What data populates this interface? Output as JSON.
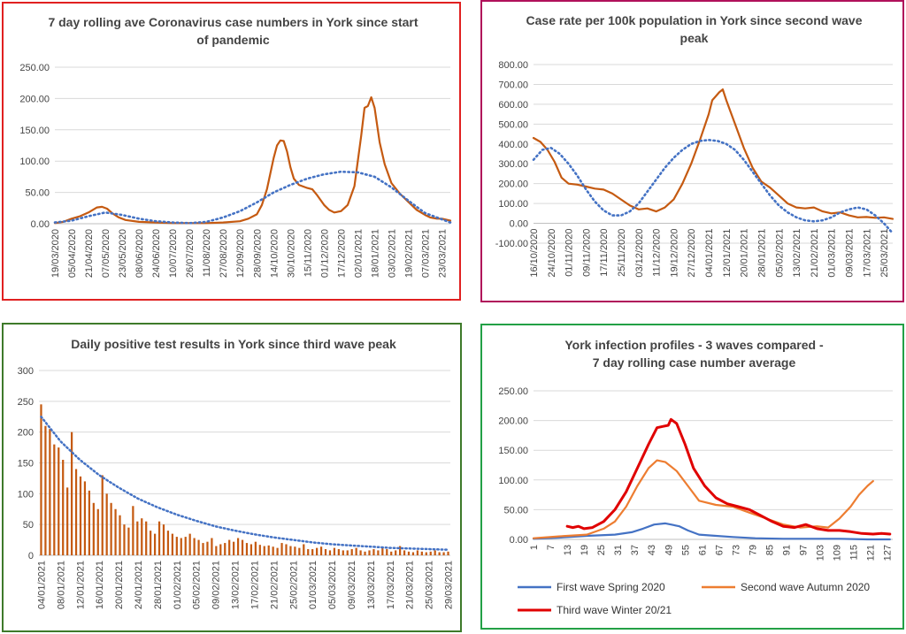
{
  "chart_data": [
    {
      "id": "p1",
      "type": "line",
      "title_lines": [
        "7 day rolling ave Coronavirus case numbers in York since start",
        "of pandemic"
      ],
      "ylim": [
        0,
        250
      ],
      "yticks": [
        "0.00",
        "50.00",
        "100.00",
        "150.00",
        "200.00",
        "250.00"
      ],
      "xticks": [
        "19/03/2020",
        "05/04/2020",
        "21/04/2020",
        "07/05/2020",
        "23/05/2020",
        "08/06/2020",
        "24/06/2020",
        "10/07/2020",
        "26/07/2020",
        "11/08/2020",
        "27/08/2020",
        "12/09/2020",
        "28/09/2020",
        "14/10/2020",
        "30/10/2020",
        "15/11/2020",
        "01/12/2020",
        "17/12/2020",
        "02/01/2021",
        "18/01/2021",
        "03/02/2021",
        "19/02/2021",
        "07/03/2021",
        "23/03/2021"
      ],
      "xrange": [
        0,
        23.5
      ],
      "series": [
        {
          "color": "#c55a11",
          "style": "solid",
          "x": [
            0,
            0.5,
            1,
            1.5,
            2,
            2.5,
            2.8,
            3.1,
            3.4,
            3.8,
            4.2,
            5,
            6,
            7,
            8,
            9,
            10,
            11,
            11.5,
            12,
            12.3,
            12.6,
            12.8,
            13,
            13.2,
            13.4,
            13.6,
            13.8,
            14,
            14.2,
            14.5,
            15,
            15.3,
            15.6,
            16,
            16.3,
            16.6,
            17,
            17.4,
            17.8,
            18,
            18.2,
            18.4,
            18.6,
            18.8,
            19,
            19.3,
            19.6,
            20,
            20.5,
            21,
            21.5,
            22,
            22.3,
            22.7,
            23,
            23.5
          ],
          "y": [
            1,
            3,
            8,
            12,
            18,
            26,
            27,
            24,
            17,
            10,
            6,
            3,
            2,
            1,
            1,
            1,
            2,
            4,
            8,
            15,
            30,
            55,
            80,
            105,
            125,
            133,
            132,
            115,
            90,
            72,
            62,
            57,
            55,
            45,
            30,
            22,
            18,
            20,
            30,
            60,
            100,
            140,
            185,
            188,
            202,
            185,
            130,
            95,
            65,
            48,
            35,
            22,
            14,
            10,
            8,
            8,
            5
          ]
        },
        {
          "color": "#4472c4",
          "style": "dotted",
          "x": [
            0,
            1,
            2,
            3,
            4,
            5,
            6,
            7,
            8,
            9,
            10,
            11,
            12,
            13,
            14,
            15,
            16,
            17,
            18,
            19,
            20,
            21,
            22,
            23.5
          ],
          "y": [
            2,
            5,
            12,
            18,
            14,
            8,
            4,
            2,
            1,
            3,
            10,
            20,
            34,
            50,
            62,
            72,
            79,
            83,
            82,
            75,
            58,
            37,
            17,
            2
          ]
        }
      ]
    },
    {
      "id": "p2",
      "type": "line",
      "title_lines": [
        "Case rate per 100k population in York since second wave",
        "peak"
      ],
      "ylim": [
        -100,
        800
      ],
      "yticks": [
        "-100.00",
        "0.00",
        "100.00",
        "200.00",
        "300.00",
        "400.00",
        "500.00",
        "600.00",
        "700.00",
        "800.00"
      ],
      "xticks": [
        "16/10/2020",
        "24/10/2020",
        "01/11/2020",
        "09/11/2020",
        "17/11/2020",
        "25/11/2020",
        "03/12/2020",
        "11/12/2020",
        "19/12/2020",
        "27/12/2020",
        "04/01/2021",
        "12/01/2021",
        "20/01/2021",
        "28/01/2021",
        "05/02/2021",
        "13/02/2021",
        "21/02/2021",
        "01/03/2021",
        "09/03/2021",
        "17/03/2021",
        "25/03/2021"
      ],
      "xrange": [
        0,
        20.5
      ],
      "series": [
        {
          "color": "#c55a11",
          "style": "solid",
          "x": [
            0,
            0.4,
            0.8,
            1.2,
            1.6,
            2,
            2.5,
            3,
            3.5,
            4,
            4.5,
            5,
            5.5,
            6,
            6.5,
            7,
            7.5,
            8,
            8.5,
            9,
            9.5,
            10,
            10.2,
            10.4,
            10.6,
            10.8,
            11,
            11.5,
            12,
            12.5,
            13,
            13.5,
            14,
            14.5,
            15,
            15.5,
            16,
            16.5,
            17,
            17.5,
            18,
            18.5,
            19,
            19.5,
            20,
            20.5
          ],
          "y": [
            430,
            410,
            370,
            310,
            230,
            200,
            195,
            185,
            175,
            170,
            150,
            120,
            90,
            70,
            75,
            60,
            80,
            120,
            200,
            300,
            420,
            550,
            620,
            640,
            660,
            675,
            620,
            500,
            380,
            280,
            210,
            180,
            140,
            100,
            80,
            75,
            80,
            60,
            50,
            55,
            40,
            30,
            32,
            28,
            30,
            22
          ]
        },
        {
          "color": "#4472c4",
          "style": "dotted",
          "x": [
            0,
            0.5,
            1,
            1.5,
            2,
            2.5,
            3,
            3.5,
            4,
            4.5,
            5,
            5.5,
            6,
            6.5,
            7,
            7.5,
            8,
            8.5,
            9,
            9.5,
            10,
            10.5,
            11,
            11.5,
            12,
            12.5,
            13,
            13.5,
            14,
            14.5,
            15,
            15.5,
            16,
            16.5,
            17,
            17.5,
            18,
            18.5,
            19,
            19.5,
            20,
            20.5
          ],
          "y": [
            320,
            370,
            380,
            350,
            300,
            240,
            170,
            110,
            65,
            40,
            40,
            60,
            100,
            160,
            220,
            280,
            330,
            370,
            400,
            415,
            420,
            415,
            400,
            370,
            320,
            260,
            200,
            140,
            90,
            55,
            30,
            15,
            10,
            15,
            30,
            55,
            70,
            80,
            70,
            40,
            0,
            -50
          ]
        }
      ]
    },
    {
      "id": "p3",
      "type": "bar",
      "title_lines": [
        "Daily positive test results in York since third wave peak"
      ],
      "ylim": [
        0,
        300
      ],
      "yticks": [
        "0",
        "50",
        "100",
        "150",
        "200",
        "250",
        "300"
      ],
      "xticks": [
        "04/01/2021",
        "08/01/2021",
        "12/01/2021",
        "16/01/2021",
        "20/01/2021",
        "24/01/2021",
        "28/01/2021",
        "01/02/2021",
        "05/02/2021",
        "09/02/2021",
        "13/02/2021",
        "17/02/2021",
        "21/02/2021",
        "25/02/2021",
        "01/03/2021",
        "05/03/2021",
        "09/03/2021",
        "13/03/2021",
        "17/03/2021",
        "21/03/2021",
        "25/03/2021",
        "29/03/2021"
      ],
      "values": [
        245,
        210,
        205,
        180,
        175,
        155,
        110,
        200,
        140,
        128,
        120,
        105,
        85,
        75,
        130,
        100,
        85,
        75,
        65,
        50,
        45,
        80,
        55,
        60,
        55,
        40,
        35,
        55,
        50,
        40,
        35,
        30,
        28,
        30,
        35,
        28,
        25,
        20,
        22,
        28,
        15,
        18,
        20,
        25,
        22,
        28,
        25,
        20,
        18,
        22,
        17,
        15,
        16,
        14,
        12,
        20,
        18,
        15,
        14,
        12,
        18,
        10,
        10,
        12,
        14,
        10,
        8,
        12,
        10,
        8,
        8,
        10,
        12,
        8,
        6,
        8,
        10,
        8,
        12,
        10,
        6,
        8,
        15,
        8,
        6,
        5,
        8,
        6,
        5,
        6,
        8,
        5,
        5,
        6
      ],
      "trend": [
        225,
        185,
        155,
        130,
        110,
        92,
        78,
        66,
        56,
        47,
        40,
        34,
        29,
        25,
        21,
        18,
        16,
        14,
        12,
        11,
        10,
        9
      ]
    },
    {
      "id": "p4",
      "type": "line",
      "title_lines": [
        "York infection profiles - 3 waves compared -",
        "7 day rolling case number average"
      ],
      "ylim": [
        0,
        250
      ],
      "yticks": [
        "0.00",
        "50.00",
        "100.00",
        "150.00",
        "200.00",
        "250.00"
      ],
      "xticks": [
        "1",
        "7",
        "13",
        "19",
        "25",
        "31",
        "37",
        "43",
        "49",
        "55",
        "61",
        "67",
        "73",
        "79",
        "85",
        "91",
        "97",
        "103",
        "109",
        "115",
        "121",
        "127"
      ],
      "xrange": [
        1,
        129
      ],
      "legend": [
        {
          "label": "First wave Spring 2020",
          "color": "#4472c4"
        },
        {
          "label": "Second wave Autumn 2020",
          "color": "#ed7d31"
        },
        {
          "label": "Third wave Winter 20/21",
          "color": "#e00000"
        }
      ],
      "series": [
        {
          "name": "First wave Spring 2020",
          "color": "#4472c4",
          "width": 2.2,
          "x": [
            1,
            10,
            20,
            30,
            36,
            40,
            44,
            48,
            50,
            53,
            56,
            60,
            66,
            72,
            80,
            90,
            100,
            110,
            120,
            128
          ],
          "y": [
            1,
            3,
            6,
            8,
            12,
            18,
            25,
            27,
            25,
            22,
            15,
            8,
            6,
            4,
            2,
            1,
            1,
            1,
            0,
            0
          ]
        },
        {
          "name": "Second wave Autumn 2020",
          "color": "#ed7d31",
          "width": 2.2,
          "x": [
            1,
            10,
            20,
            26,
            30,
            34,
            38,
            42,
            45,
            48,
            52,
            56,
            60,
            66,
            72,
            78,
            84,
            90,
            96,
            102,
            106,
            110,
            114,
            117,
            120,
            122
          ],
          "y": [
            2,
            5,
            8,
            18,
            30,
            55,
            90,
            120,
            133,
            130,
            115,
            90,
            65,
            58,
            55,
            45,
            35,
            25,
            20,
            22,
            20,
            35,
            55,
            75,
            90,
            98
          ]
        },
        {
          "name": "Third wave Winter 20/21",
          "color": "#e00000",
          "width": 3,
          "x": [
            13,
            15,
            17,
            19,
            22,
            26,
            30,
            34,
            38,
            42,
            45,
            47,
            49,
            50,
            52,
            55,
            58,
            62,
            66,
            70,
            74,
            78,
            82,
            86,
            90,
            94,
            98,
            102,
            106,
            110,
            114,
            118,
            122,
            125,
            128
          ],
          "y": [
            22,
            20,
            22,
            18,
            20,
            30,
            50,
            80,
            120,
            160,
            188,
            190,
            192,
            202,
            195,
            160,
            120,
            90,
            70,
            60,
            55,
            50,
            40,
            30,
            22,
            20,
            25,
            18,
            15,
            15,
            13,
            10,
            9,
            10,
            9
          ]
        }
      ]
    }
  ]
}
